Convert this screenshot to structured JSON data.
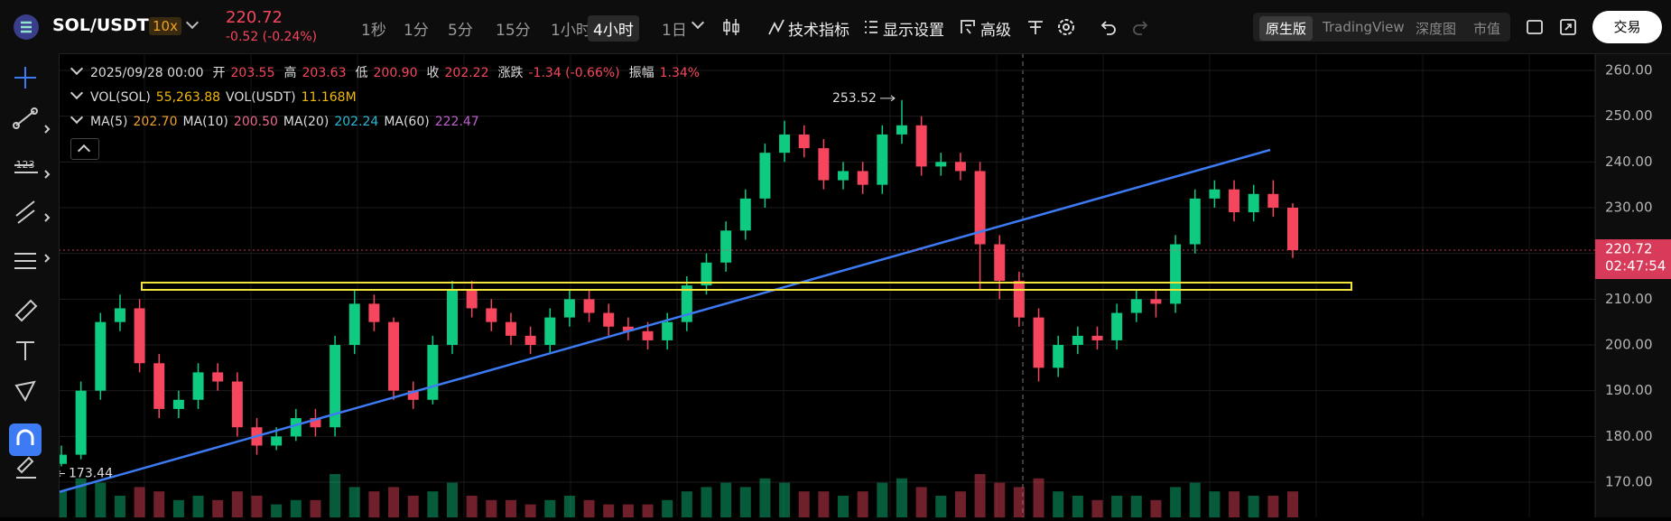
{
  "header": {
    "symbol": "SOL/USDT",
    "leverage": "10x",
    "price": "220.72",
    "change": "-0.52 (-0.24%)",
    "intervals": [
      "1秒",
      "1分",
      "5分",
      "15分",
      "1小时",
      "4小时",
      "1日"
    ],
    "tools": [
      "技术指标",
      "显示设置",
      "高级"
    ],
    "views": [
      "原生版",
      "TradingView",
      "深度图",
      "市值"
    ],
    "trade_button": "交易"
  },
  "toolbar": {
    "label": "123"
  },
  "legend": {
    "time": "2025/09/28 00:00",
    "ohlc": [
      {
        "label": "开",
        "value": "203.55"
      },
      {
        "label": "高",
        "value": "203.63"
      },
      {
        "label": "低",
        "value": "200.90"
      },
      {
        "label": "收",
        "value": "202.22"
      },
      {
        "label": "涨跌",
        "value": "-1.34 (-0.66%)"
      },
      {
        "label": "振幅",
        "value": "1.34%"
      }
    ],
    "vol": [
      {
        "label": "VOL(SOL)",
        "value": "55,263.88"
      },
      {
        "label": "VOL(USDT)",
        "value": "11.168M"
      }
    ],
    "ma": [
      {
        "label": "MA(5)",
        "value": "202.70",
        "color": "#f0a030"
      },
      {
        "label": "MA(10)",
        "value": "200.50",
        "color": "#e86a8a"
      },
      {
        "label": "MA(20)",
        "value": "202.24",
        "color": "#2bbbd9"
      },
      {
        "label": "MA(60)",
        "value": "222.47",
        "color": "#c060d0"
      }
    ]
  },
  "chart_data": {
    "type": "candlestick",
    "open": [
      174,
      176,
      190,
      205,
      208,
      196,
      186,
      188,
      194,
      192,
      182,
      178,
      180,
      184,
      182,
      200,
      209,
      205,
      190,
      188,
      200,
      212,
      208,
      205,
      202,
      200,
      206,
      210,
      207,
      204,
      203,
      201,
      205,
      213,
      218,
      225,
      232,
      242,
      246,
      243,
      236,
      238,
      235,
      246,
      248,
      239,
      240,
      238,
      222,
      214,
      206,
      195,
      200,
      202,
      201,
      207,
      210,
      209,
      222,
      232,
      234,
      229,
      233,
      230
    ],
    "high": [
      178,
      192,
      207,
      211,
      210,
      198,
      190,
      196,
      196,
      194,
      184,
      182,
      186,
      186,
      202,
      212,
      211,
      206,
      192,
      202,
      214,
      214,
      210,
      207,
      204,
      208,
      212,
      212,
      209,
      206,
      205,
      207,
      215,
      220,
      227,
      234,
      244,
      249,
      248,
      245,
      240,
      240,
      248,
      253.52,
      250,
      242,
      242,
      240,
      224,
      216,
      208,
      202,
      204,
      204,
      209,
      212,
      212,
      224,
      234,
      236,
      236,
      235,
      236,
      231
    ],
    "low": [
      173.44,
      175,
      188,
      203,
      194,
      184,
      184,
      186,
      190,
      180,
      176,
      177,
      179,
      180,
      180,
      198,
      203,
      188,
      186,
      187,
      198,
      206,
      203,
      200,
      198,
      198,
      204,
      205,
      202,
      201,
      199,
      199,
      203,
      211,
      216,
      223,
      230,
      240,
      241,
      234,
      234,
      233,
      233,
      244,
      237,
      237,
      236,
      212,
      210,
      204,
      192,
      193,
      198,
      199,
      199,
      205,
      206,
      207,
      220,
      230,
      227,
      227,
      228,
      219
    ],
    "close": [
      176,
      190,
      205,
      208,
      196,
      186,
      188,
      194,
      192,
      182,
      178,
      180,
      184,
      182,
      200,
      209,
      205,
      190,
      188,
      200,
      212,
      208,
      205,
      202,
      200,
      206,
      210,
      207,
      204,
      203,
      201,
      205,
      213,
      218,
      225,
      232,
      242,
      246,
      243,
      236,
      238,
      235,
      246,
      248,
      239,
      240,
      238,
      222,
      214,
      206,
      195,
      200,
      202,
      201,
      207,
      210,
      209,
      222,
      232,
      234,
      229,
      233,
      230,
      220.72
    ],
    "volume": [
      6,
      9,
      8,
      5,
      7,
      6,
      4,
      5,
      4,
      6,
      5,
      3,
      4,
      4,
      10,
      7,
      6,
      7,
      5,
      6,
      8,
      5,
      4,
      4,
      3,
      4,
      5,
      4,
      3,
      3,
      3,
      4,
      6,
      7,
      8,
      7,
      9,
      8,
      6,
      6,
      5,
      6,
      8,
      9,
      7,
      5,
      6,
      10,
      8,
      7,
      9,
      6,
      5,
      4,
      5,
      5,
      4,
      7,
      8,
      6,
      6,
      5,
      5,
      6
    ],
    "up_color": "#0ecb81",
    "down_color": "#f6465d",
    "ylim": [
      162.3,
      263.75
    ],
    "yticks": [
      {
        "value": 170,
        "label": "170.00"
      },
      {
        "value": 180,
        "label": "180.00"
      },
      {
        "value": 190,
        "label": "190.00"
      },
      {
        "value": 200,
        "label": "200.00"
      },
      {
        "value": 210,
        "label": "210.00"
      },
      {
        "value": 220,
        "label": "220.00"
      },
      {
        "value": 230,
        "label": "230.00"
      },
      {
        "value": 240,
        "label": "240.00"
      },
      {
        "value": 250,
        "label": "250.00"
      },
      {
        "value": 260,
        "label": "260.00"
      }
    ],
    "grid": true,
    "last_price": 220.72,
    "countdown": "02:47:54"
  }
}
